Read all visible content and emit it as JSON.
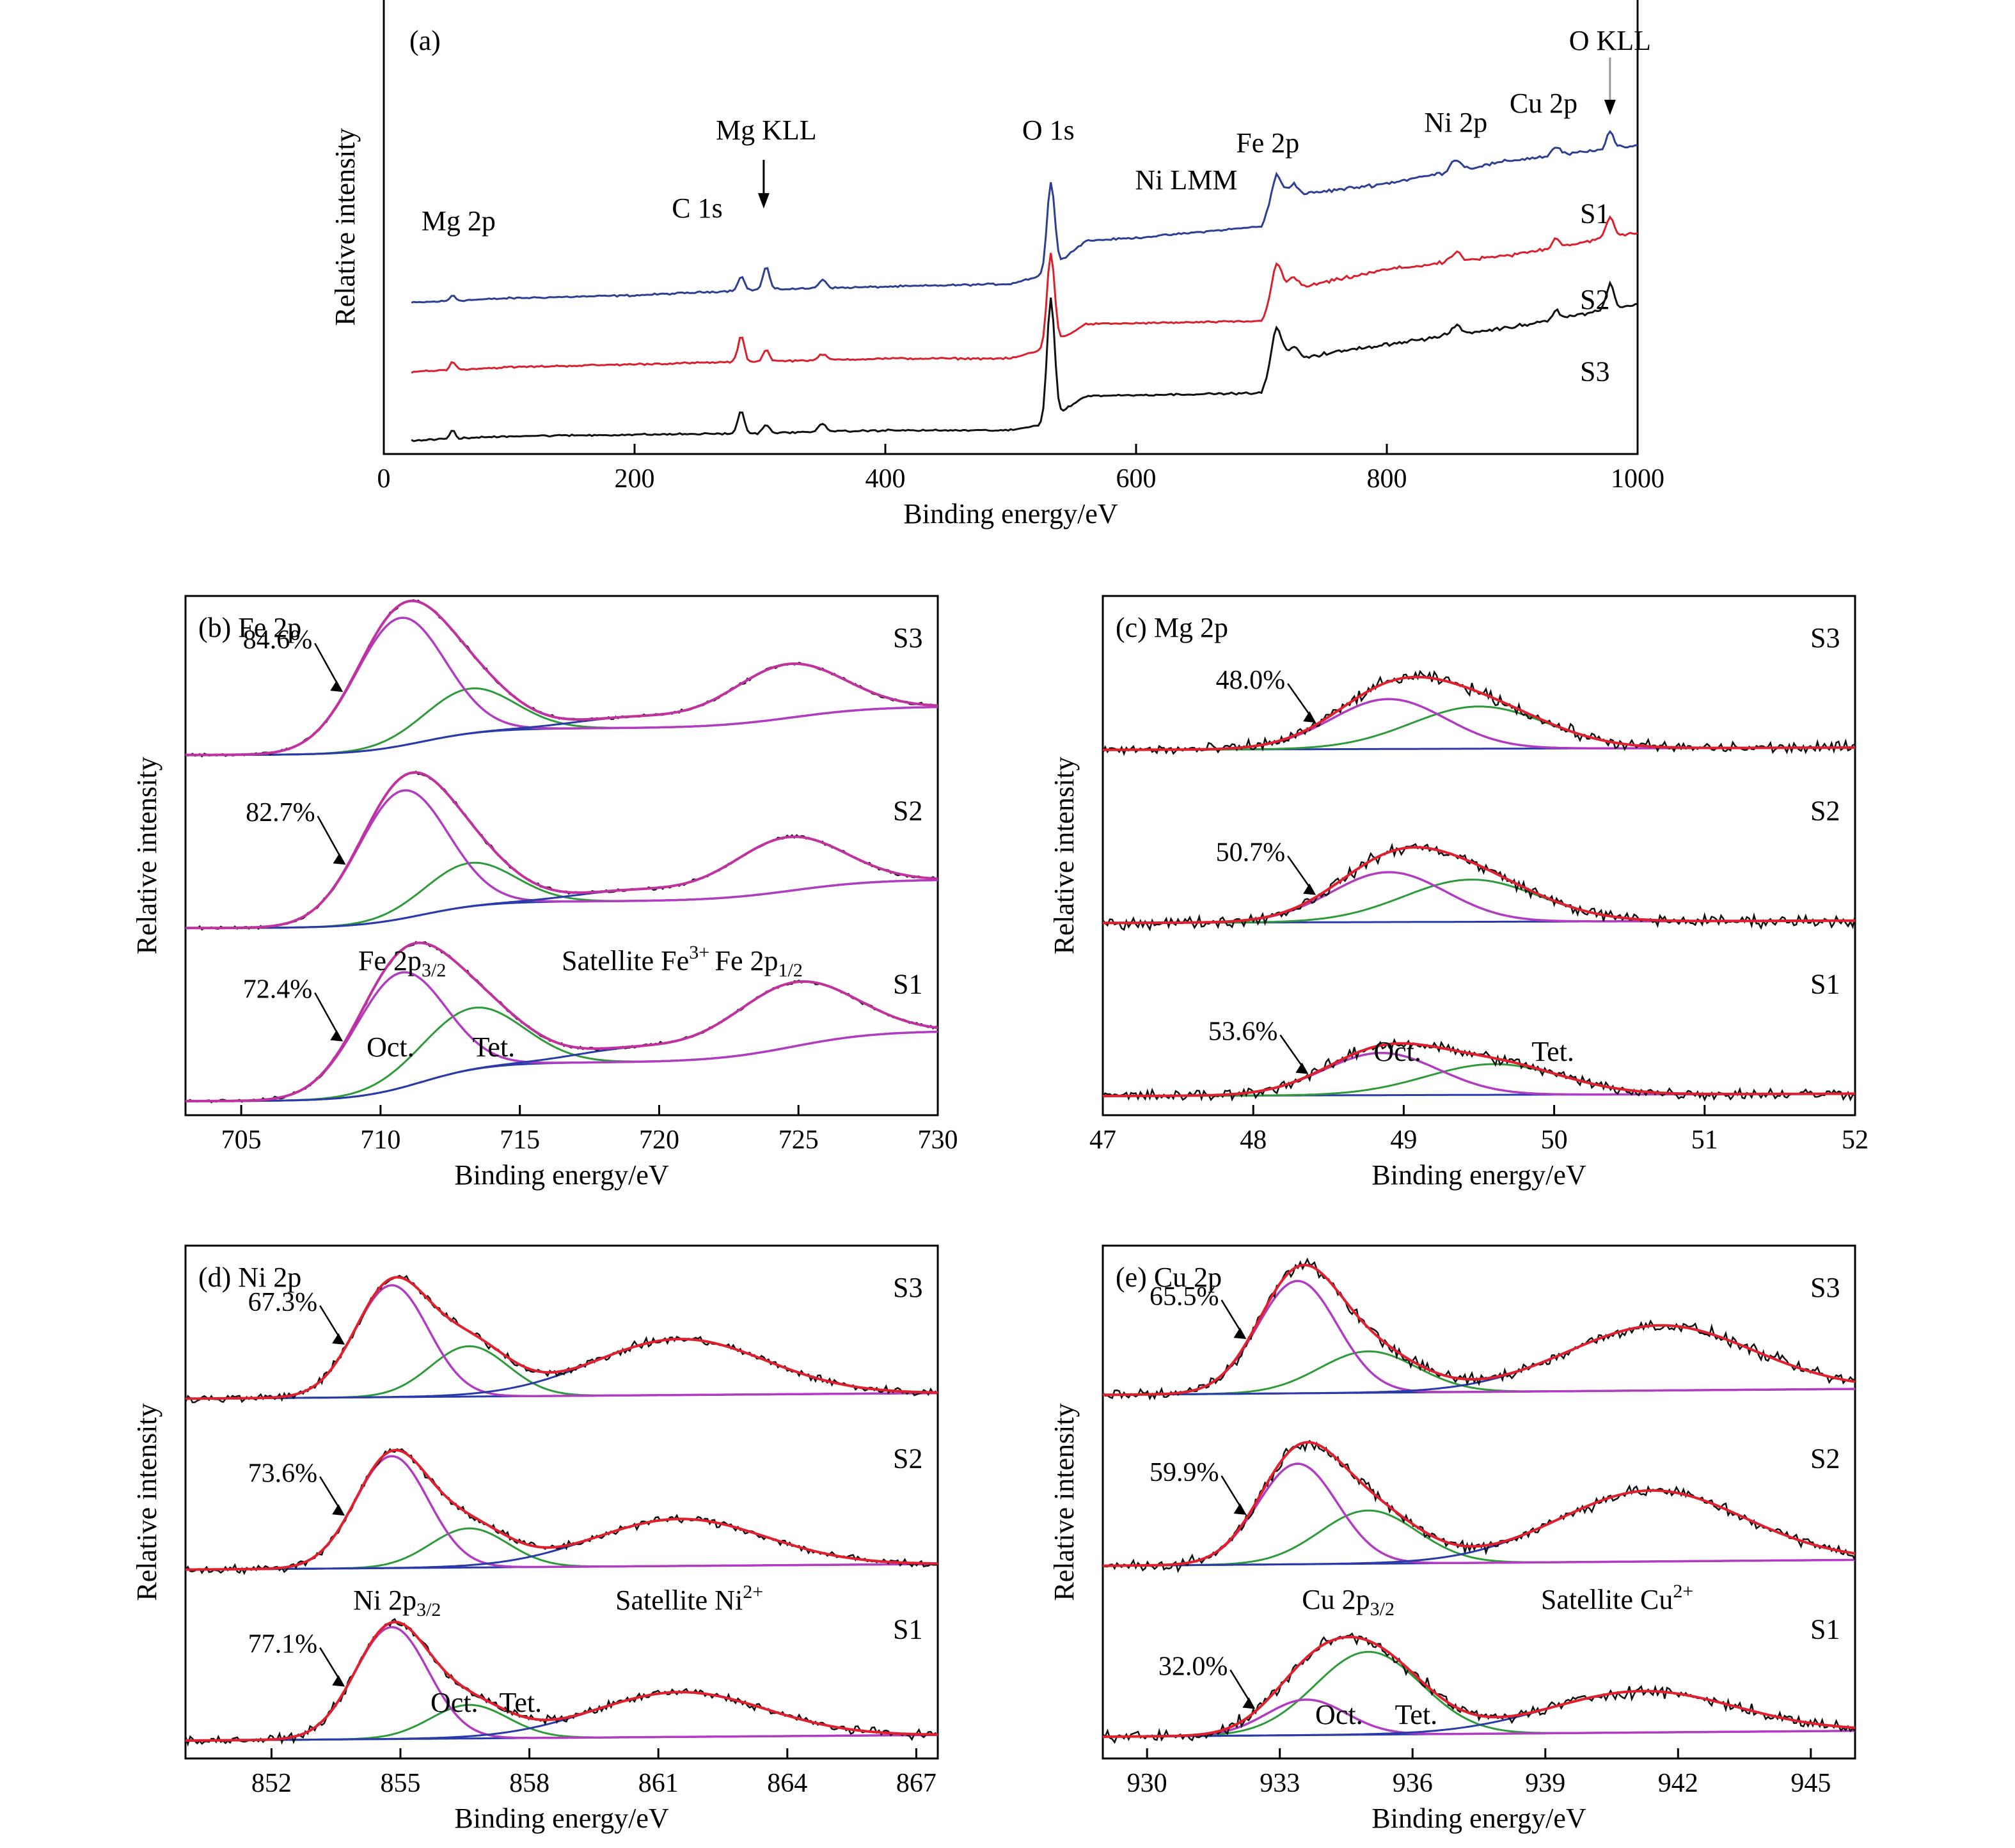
{
  "axis_label_x": "Binding energy/eV",
  "axis_label_y": "Relative intensity",
  "colors": {
    "S1_survey": "#2c3f93",
    "S2_survey": "#d9212e",
    "S3_survey": "#111111",
    "raw": "#111111",
    "envelope": "#e0202e",
    "oct": "#b03cc0",
    "tet": "#2e9a3a",
    "background": "#2a3aa8",
    "fe_envelope": "#c0339f"
  },
  "chart_data": [
    {
      "id": "a",
      "type": "line",
      "panel_label": "(a)",
      "xlabel": "Binding energy/eV",
      "ylabel": "Relative intensity",
      "xlim": [
        0,
        1000
      ],
      "xticks": [
        0,
        200,
        400,
        600,
        800,
        1000
      ],
      "series": [
        {
          "name": "S1",
          "baseline": [
            [
              0,
              0.1
            ],
            [
              100,
              0.12
            ],
            [
              200,
              0.13
            ],
            [
              300,
              0.15
            ],
            [
              400,
              0.16
            ],
            [
              500,
              0.17
            ],
            [
              525,
              0.2
            ],
            [
              560,
              0.32
            ],
            [
              600,
              0.33
            ],
            [
              700,
              0.37
            ],
            [
              712,
              0.47
            ],
            [
              800,
              0.52
            ],
            [
              900,
              0.6
            ],
            [
              1000,
              0.65
            ]
          ],
          "peaks": [
            [
              55,
              0.02,
              2
            ],
            [
              285,
              0.05,
              2.5
            ],
            [
              305,
              0.08,
              2.5
            ],
            [
              350,
              0.03,
              3
            ],
            [
              532,
              0.3,
              3
            ],
            [
              712,
              0.08,
              4
            ],
            [
              725,
              0.04,
              4
            ],
            [
              855,
              0.04,
              4
            ],
            [
              935,
              0.03,
              3
            ],
            [
              978,
              0.06,
              3
            ]
          ]
        },
        {
          "name": "S2",
          "baseline": [
            [
              0,
              -0.14
            ],
            [
              100,
              -0.12
            ],
            [
              200,
              -0.11
            ],
            [
              300,
              -0.1
            ],
            [
              400,
              -0.09
            ],
            [
              500,
              -0.09
            ],
            [
              525,
              -0.06
            ],
            [
              560,
              0.03
            ],
            [
              700,
              0.04
            ],
            [
              712,
              0.14
            ],
            [
              800,
              0.22
            ],
            [
              900,
              0.27
            ],
            [
              1000,
              0.35
            ]
          ],
          "peaks": [
            [
              55,
              0.03,
              2
            ],
            [
              285,
              0.09,
              2.5
            ],
            [
              305,
              0.04,
              2.5
            ],
            [
              350,
              0.02,
              3
            ],
            [
              532,
              0.32,
              3
            ],
            [
              712,
              0.1,
              4
            ],
            [
              725,
              0.04,
              4
            ],
            [
              855,
              0.03,
              4
            ],
            [
              935,
              0.03,
              3
            ],
            [
              978,
              0.07,
              3
            ]
          ]
        },
        {
          "name": "S3",
          "baseline": [
            [
              0,
              -0.38
            ],
            [
              100,
              -0.36
            ],
            [
              200,
              -0.355
            ],
            [
              300,
              -0.35
            ],
            [
              400,
              -0.34
            ],
            [
              500,
              -0.34
            ],
            [
              525,
              -0.32
            ],
            [
              560,
              -0.22
            ],
            [
              700,
              -0.21
            ],
            [
              712,
              -0.1
            ],
            [
              800,
              -0.04
            ],
            [
              900,
              0.02
            ],
            [
              1000,
              0.1
            ]
          ],
          "peaks": [
            [
              55,
              0.03,
              2
            ],
            [
              285,
              0.08,
              2.5
            ],
            [
              305,
              0.03,
              2.5
            ],
            [
              350,
              0.03,
              3
            ],
            [
              532,
              0.42,
              3
            ],
            [
              712,
              0.12,
              4
            ],
            [
              725,
              0.04,
              4
            ],
            [
              855,
              0.03,
              4
            ],
            [
              935,
              0.03,
              3
            ],
            [
              978,
              0.09,
              3
            ]
          ]
        }
      ],
      "peak_labels": [
        {
          "text": "Mg 2p",
          "x": 30
        },
        {
          "text": "C 1s",
          "x": 250
        },
        {
          "text": "Mg KLL",
          "x": 305
        },
        {
          "text": "O 1s",
          "x": 530
        },
        {
          "text": "Ni LMM",
          "x": 640
        },
        {
          "text": "Fe 2p",
          "x": 705
        },
        {
          "text": "Ni 2p",
          "x": 855
        },
        {
          "text": "Cu 2p",
          "x": 925
        },
        {
          "text": "O KLL",
          "x": 978
        }
      ]
    },
    {
      "id": "b",
      "type": "line",
      "panel_label": "(b) Fe 2p",
      "xlabel": "Binding energy/eV",
      "ylabel": "Relative intensity",
      "xlim": [
        703,
        730
      ],
      "xticks": [
        705,
        710,
        715,
        720,
        725,
        730
      ],
      "series": [
        {
          "name": "S3",
          "percent": "84.6%",
          "oct": {
            "center": 710.7,
            "height": 1.0,
            "width": 1.6
          },
          "tet": {
            "center": 713.2,
            "height": 0.35,
            "width": 1.6
          },
          "sat": {
            "center": 719.0,
            "height": 0.08,
            "width": 2.0
          },
          "p12": {
            "center": 724.6,
            "height": 0.42,
            "width": 2.0
          },
          "bg_step": 0.38
        },
        {
          "name": "S2",
          "percent": "82.7%",
          "oct": {
            "center": 710.8,
            "height": 1.0,
            "width": 1.6
          },
          "tet": {
            "center": 713.2,
            "height": 0.34,
            "width": 1.6
          },
          "sat": {
            "center": 719.0,
            "height": 0.08,
            "width": 2.0
          },
          "p12": {
            "center": 724.6,
            "height": 0.42,
            "width": 2.0
          },
          "bg_step": 0.38
        },
        {
          "name": "S1",
          "percent": "72.4%",
          "oct": {
            "center": 710.7,
            "height": 0.9,
            "width": 1.6
          },
          "tet": {
            "center": 713.3,
            "height": 0.48,
            "width": 1.8
          },
          "sat": {
            "center": 719.0,
            "height": 0.1,
            "width": 2.0
          },
          "p12": {
            "center": 724.8,
            "height": 0.5,
            "width": 2.2
          },
          "bg_step": 0.55
        }
      ],
      "annotations": [
        {
          "text": "Fe 2p",
          "sub": "3/2",
          "x": 709.2,
          "series": "S1"
        },
        {
          "text": "Fe 2p",
          "sub": "1/2",
          "x": 722.0,
          "series": "S1"
        },
        {
          "text": "Satellite Fe",
          "sup": "3+",
          "x": 716.5,
          "series": "S1"
        },
        {
          "text": "Oct.",
          "x": 709.5,
          "series": "S1"
        },
        {
          "text": "Tet.",
          "x": 713.3,
          "series": "S1"
        }
      ]
    },
    {
      "id": "c",
      "type": "line",
      "panel_label": "(c) Mg 2p",
      "xlabel": "Binding energy/eV",
      "ylabel": "Relative intensity",
      "xlim": [
        47,
        52
      ],
      "xticks": [
        47,
        48,
        49,
        50,
        51,
        52
      ],
      "series": [
        {
          "name": "S3",
          "percent": "48.0%",
          "oct": {
            "center": 48.9,
            "height": 0.65,
            "width": 0.38
          },
          "tet": {
            "center": 49.5,
            "height": 0.55,
            "width": 0.45
          }
        },
        {
          "name": "S2",
          "percent": "50.7%",
          "oct": {
            "center": 48.9,
            "height": 0.65,
            "width": 0.38
          },
          "tet": {
            "center": 49.45,
            "height": 0.55,
            "width": 0.45
          }
        },
        {
          "name": "S1",
          "percent": "53.6%",
          "oct": {
            "center": 48.85,
            "height": 0.55,
            "width": 0.38
          },
          "tet": {
            "center": 49.6,
            "height": 0.4,
            "width": 0.45
          }
        }
      ],
      "annotations": [
        {
          "text": "Oct.",
          "x": 48.8,
          "series": "S1"
        },
        {
          "text": "Tet.",
          "x": 49.85,
          "series": "S1"
        }
      ]
    },
    {
      "id": "d",
      "type": "line",
      "panel_label": "(d) Ni 2p",
      "xlabel": "Binding energy/eV",
      "ylabel": "Relative intensity",
      "xlim": [
        850,
        867.5
      ],
      "xticks": [
        852,
        855,
        858,
        861,
        864,
        867
      ],
      "series": [
        {
          "name": "S3",
          "percent": "67.3%",
          "oct": {
            "center": 854.8,
            "height": 1.0,
            "width": 0.85
          },
          "tet": {
            "center": 856.6,
            "height": 0.45,
            "width": 0.9
          },
          "sat": {
            "center": 861.5,
            "height": 0.5,
            "width": 2.0
          }
        },
        {
          "name": "S2",
          "percent": "73.6%",
          "oct": {
            "center": 854.8,
            "height": 1.0,
            "width": 0.85
          },
          "tet": {
            "center": 856.6,
            "height": 0.35,
            "width": 0.9
          },
          "sat": {
            "center": 861.5,
            "height": 0.42,
            "width": 2.0
          }
        },
        {
          "name": "S1",
          "percent": "77.1%",
          "oct": {
            "center": 854.8,
            "height": 1.0,
            "width": 0.85
          },
          "tet": {
            "center": 856.6,
            "height": 0.3,
            "width": 0.9
          },
          "sat": {
            "center": 861.5,
            "height": 0.4,
            "width": 2.0
          }
        }
      ],
      "annotations": [
        {
          "text": "Ni 2p",
          "sub": "3/2",
          "x": 853.9,
          "series": "S1"
        },
        {
          "text": "Satellite Ni",
          "sup": "2+",
          "x": 860.0,
          "series": "S1"
        },
        {
          "text": "Oct.",
          "x": 855.7,
          "series": "S1"
        },
        {
          "text": "Tet.",
          "x": 857.3,
          "series": "S1"
        }
      ]
    },
    {
      "id": "e",
      "type": "line",
      "panel_label": "(e) Cu 2p",
      "xlabel": "Binding energy/eV",
      "ylabel": "Relative intensity",
      "xlim": [
        929,
        946
      ],
      "xticks": [
        930,
        933,
        936,
        939,
        942,
        945
      ],
      "series": [
        {
          "name": "S3",
          "percent": "65.5%",
          "oct": {
            "center": 933.4,
            "height": 0.95,
            "width": 0.9
          },
          "tet": {
            "center": 935.0,
            "height": 0.35,
            "width": 1.1
          },
          "sat": {
            "center": 941.6,
            "height": 0.55,
            "width": 2.1
          }
        },
        {
          "name": "S2",
          "percent": "59.9%",
          "oct": {
            "center": 933.4,
            "height": 0.85,
            "width": 0.9
          },
          "tet": {
            "center": 935.0,
            "height": 0.45,
            "width": 1.1
          },
          "sat": {
            "center": 941.4,
            "height": 0.6,
            "width": 2.1
          }
        },
        {
          "name": "S1",
          "percent": "32.0%",
          "oct": {
            "center": 933.6,
            "height": 0.3,
            "width": 0.9
          },
          "tet": {
            "center": 935.0,
            "height": 0.7,
            "width": 1.2
          },
          "sat": {
            "center": 941.2,
            "height": 0.35,
            "width": 2.1
          }
        }
      ],
      "annotations": [
        {
          "text": "Cu 2p",
          "sub": "3/2",
          "x": 933.5,
          "series": "S1"
        },
        {
          "text": "Satellite Cu",
          "sup": "2+",
          "x": 938.9,
          "series": "S1"
        },
        {
          "text": "Oct.",
          "x": 933.8,
          "series": "S1"
        },
        {
          "text": "Tet.",
          "x": 935.6,
          "series": "S1"
        }
      ]
    }
  ]
}
